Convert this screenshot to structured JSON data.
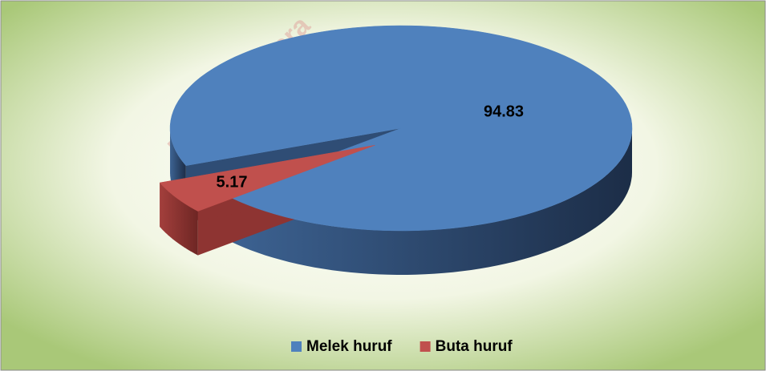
{
  "chart_data": {
    "type": "pie",
    "categories": [
      "Melek huruf",
      "Buta huruf"
    ],
    "values": [
      94.83,
      5.17
    ],
    "colors": [
      "#4f81bd",
      "#c0504d"
    ],
    "legend": "bottom",
    "annotations": [
      "https://semara"
    ]
  }
}
